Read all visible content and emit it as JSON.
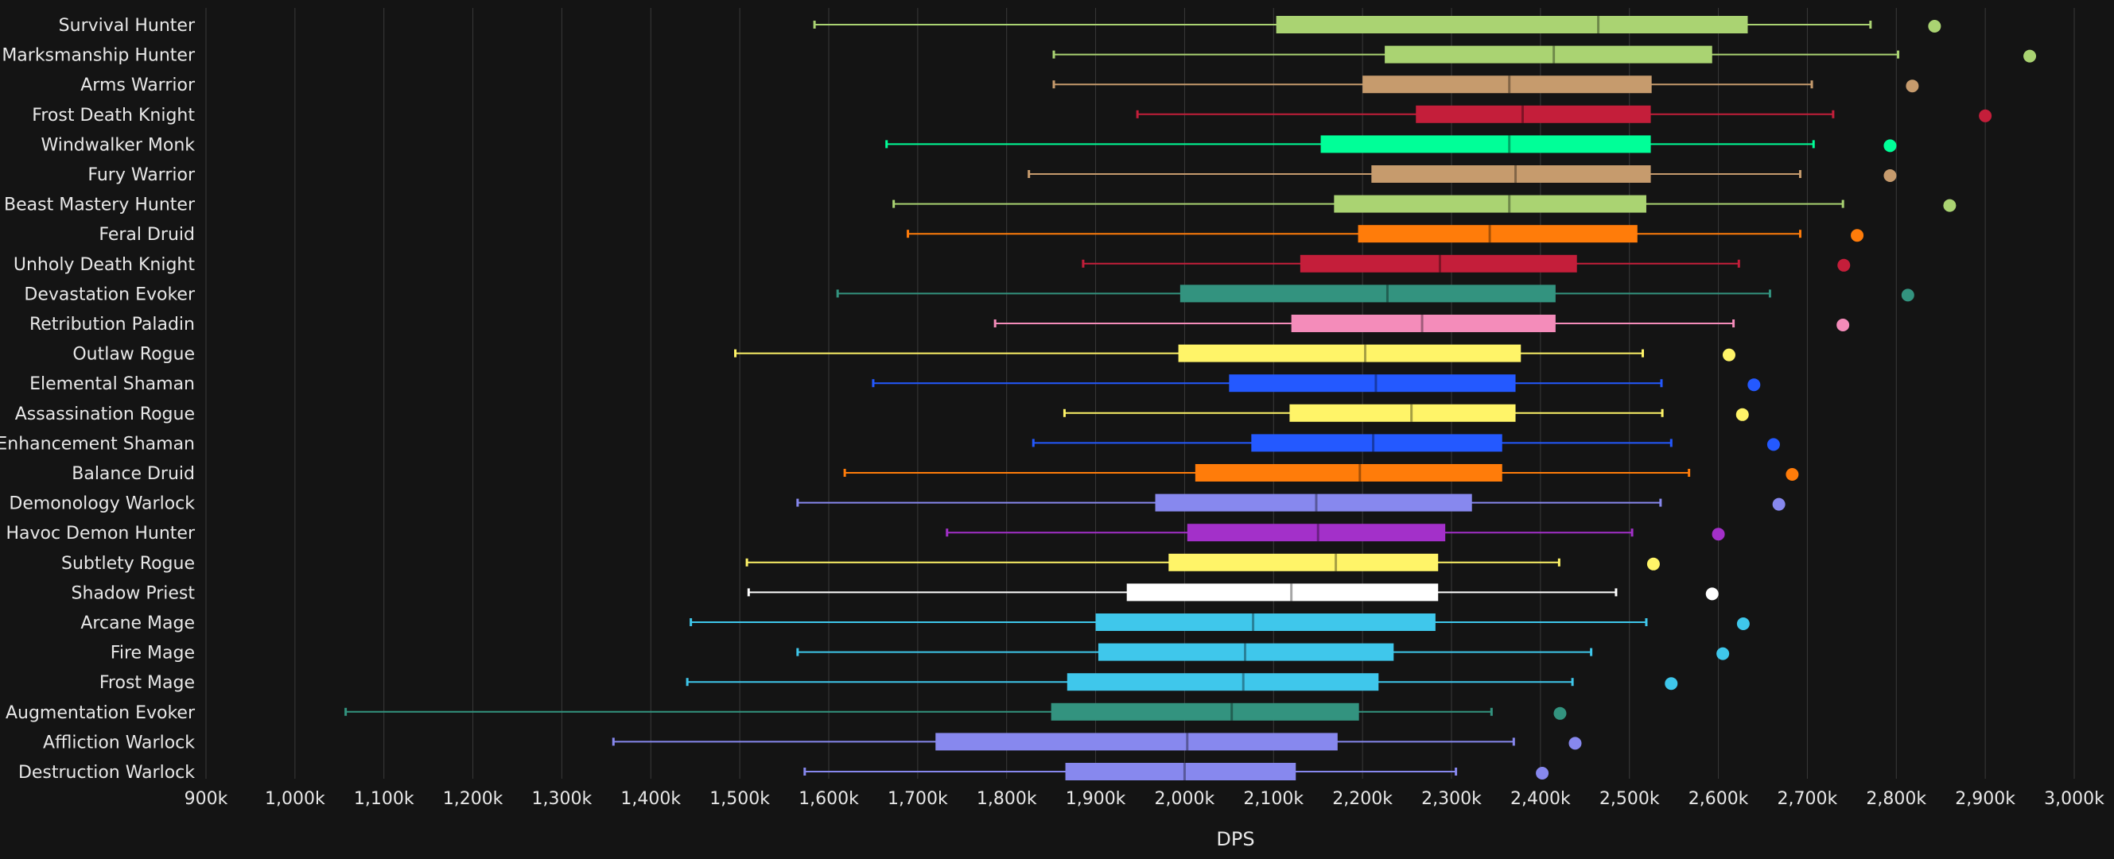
{
  "chart_data": {
    "type": "boxplot",
    "xlabel": "DPS",
    "xlim": [
      900,
      3000
    ],
    "x_unit": "k",
    "x_ticks": [
      900,
      1000,
      1100,
      1200,
      1300,
      1400,
      1500,
      1600,
      1700,
      1800,
      1900,
      2000,
      2100,
      2200,
      2300,
      2400,
      2500,
      2600,
      2700,
      2800,
      2900,
      3000
    ],
    "tick_labels": [
      "900k",
      "1,000k",
      "1,100k",
      "1,200k",
      "1,300k",
      "1,400k",
      "1,500k",
      "1,600k",
      "1,700k",
      "1,800k",
      "1,900k",
      "2,000k",
      "2,100k",
      "2,200k",
      "2,300k",
      "2,400k",
      "2,500k",
      "2,600k",
      "2,700k",
      "2,800k",
      "2,900k",
      "3,000k"
    ],
    "grid": "vertical",
    "categories": [
      {
        "name": "Survival Hunter",
        "color": "#AAD372",
        "min": 1584,
        "q1": 2103,
        "median": 2465,
        "q3": 2633,
        "max": 2771,
        "outlier": 2843
      },
      {
        "name": "Marksmanship Hunter",
        "color": "#AAD372",
        "min": 1853,
        "q1": 2225,
        "median": 2415,
        "q3": 2593,
        "max": 2802,
        "outlier": 2950
      },
      {
        "name": "Arms Warrior",
        "color": "#C69B6D",
        "min": 1853,
        "q1": 2200,
        "median": 2365,
        "q3": 2525,
        "max": 2705,
        "outlier": 2818
      },
      {
        "name": "Frost Death Knight",
        "color": "#C41E3A",
        "min": 1947,
        "q1": 2260,
        "median": 2380,
        "q3": 2524,
        "max": 2729,
        "outlier": 2900
      },
      {
        "name": "Windwalker Monk",
        "color": "#00FF98",
        "min": 1665,
        "q1": 2153,
        "median": 2365,
        "q3": 2524,
        "max": 2707,
        "outlier": 2793
      },
      {
        "name": "Fury Warrior",
        "color": "#C69B6D",
        "min": 1825,
        "q1": 2210,
        "median": 2372,
        "q3": 2524,
        "max": 2692,
        "outlier": 2793
      },
      {
        "name": "Beast Mastery Hunter",
        "color": "#AAD372",
        "min": 1673,
        "q1": 2168,
        "median": 2365,
        "q3": 2519,
        "max": 2740,
        "outlier": 2860
      },
      {
        "name": "Feral Druid",
        "color": "#FF7C0A",
        "min": 1689,
        "q1": 2195,
        "median": 2343,
        "q3": 2509,
        "max": 2692,
        "outlier": 2756
      },
      {
        "name": "Unholy Death Knight",
        "color": "#C41E3A",
        "min": 1886,
        "q1": 2130,
        "median": 2287,
        "q3": 2441,
        "max": 2623,
        "outlier": 2741
      },
      {
        "name": "Devastation Evoker",
        "color": "#33937F",
        "min": 1610,
        "q1": 1995,
        "median": 2228,
        "q3": 2417,
        "max": 2658,
        "outlier": 2813
      },
      {
        "name": "Retribution Paladin",
        "color": "#F48CBA",
        "min": 1787,
        "q1": 2120,
        "median": 2267,
        "q3": 2417,
        "max": 2617,
        "outlier": 2740
      },
      {
        "name": "Outlaw Rogue",
        "color": "#FFF468",
        "min": 1495,
        "q1": 1993,
        "median": 2203,
        "q3": 2378,
        "max": 2515,
        "outlier": 2612
      },
      {
        "name": "Elemental Shaman",
        "color": "#2459FF",
        "min": 1650,
        "q1": 2050,
        "median": 2215,
        "q3": 2372,
        "max": 2536,
        "outlier": 2640
      },
      {
        "name": "Assassination Rogue",
        "color": "#FFF468",
        "min": 1865,
        "q1": 2118,
        "median": 2255,
        "q3": 2372,
        "max": 2537,
        "outlier": 2627
      },
      {
        "name": "Enhancement Shaman",
        "color": "#2459FF",
        "min": 1830,
        "q1": 2075,
        "median": 2212,
        "q3": 2357,
        "max": 2547,
        "outlier": 2662
      },
      {
        "name": "Balance Druid",
        "color": "#FF7C0A",
        "min": 1618,
        "q1": 2012,
        "median": 2197,
        "q3": 2357,
        "max": 2567,
        "outlier": 2683
      },
      {
        "name": "Demonology Warlock",
        "color": "#8788EE",
        "min": 1565,
        "q1": 1967,
        "median": 2148,
        "q3": 2323,
        "max": 2535,
        "outlier": 2668
      },
      {
        "name": "Havoc Demon Hunter",
        "color": "#A330C9",
        "min": 1733,
        "q1": 2003,
        "median": 2150,
        "q3": 2293,
        "max": 2503,
        "outlier": 2600
      },
      {
        "name": "Subtlety Rogue",
        "color": "#FFF468",
        "min": 1508,
        "q1": 1982,
        "median": 2170,
        "q3": 2285,
        "max": 2421,
        "outlier": 2527
      },
      {
        "name": "Shadow Priest",
        "color": "#FFFFFF",
        "min": 1510,
        "q1": 1935,
        "median": 2120,
        "q3": 2285,
        "max": 2485,
        "outlier": 2593
      },
      {
        "name": "Arcane Mage",
        "color": "#3FC7EB",
        "min": 1445,
        "q1": 1900,
        "median": 2077,
        "q3": 2282,
        "max": 2519,
        "outlier": 2628
      },
      {
        "name": "Fire Mage",
        "color": "#3FC7EB",
        "min": 1565,
        "q1": 1903,
        "median": 2068,
        "q3": 2235,
        "max": 2457,
        "outlier": 2605
      },
      {
        "name": "Frost Mage",
        "color": "#3FC7EB",
        "min": 1441,
        "q1": 1868,
        "median": 2066,
        "q3": 2218,
        "max": 2436,
        "outlier": 2547
      },
      {
        "name": "Augmentation Evoker",
        "color": "#33937F",
        "min": 1057,
        "q1": 1850,
        "median": 2053,
        "q3": 2196,
        "max": 2345,
        "outlier": 2422
      },
      {
        "name": "Affliction Warlock",
        "color": "#8788EE",
        "min": 1358,
        "q1": 1720,
        "median": 2003,
        "q3": 2172,
        "max": 2370,
        "outlier": 2439
      },
      {
        "name": "Destruction Warlock",
        "color": "#8788EE",
        "min": 1573,
        "q1": 1866,
        "median": 2000,
        "q3": 2125,
        "max": 2305,
        "outlier": 2402
      }
    ]
  }
}
